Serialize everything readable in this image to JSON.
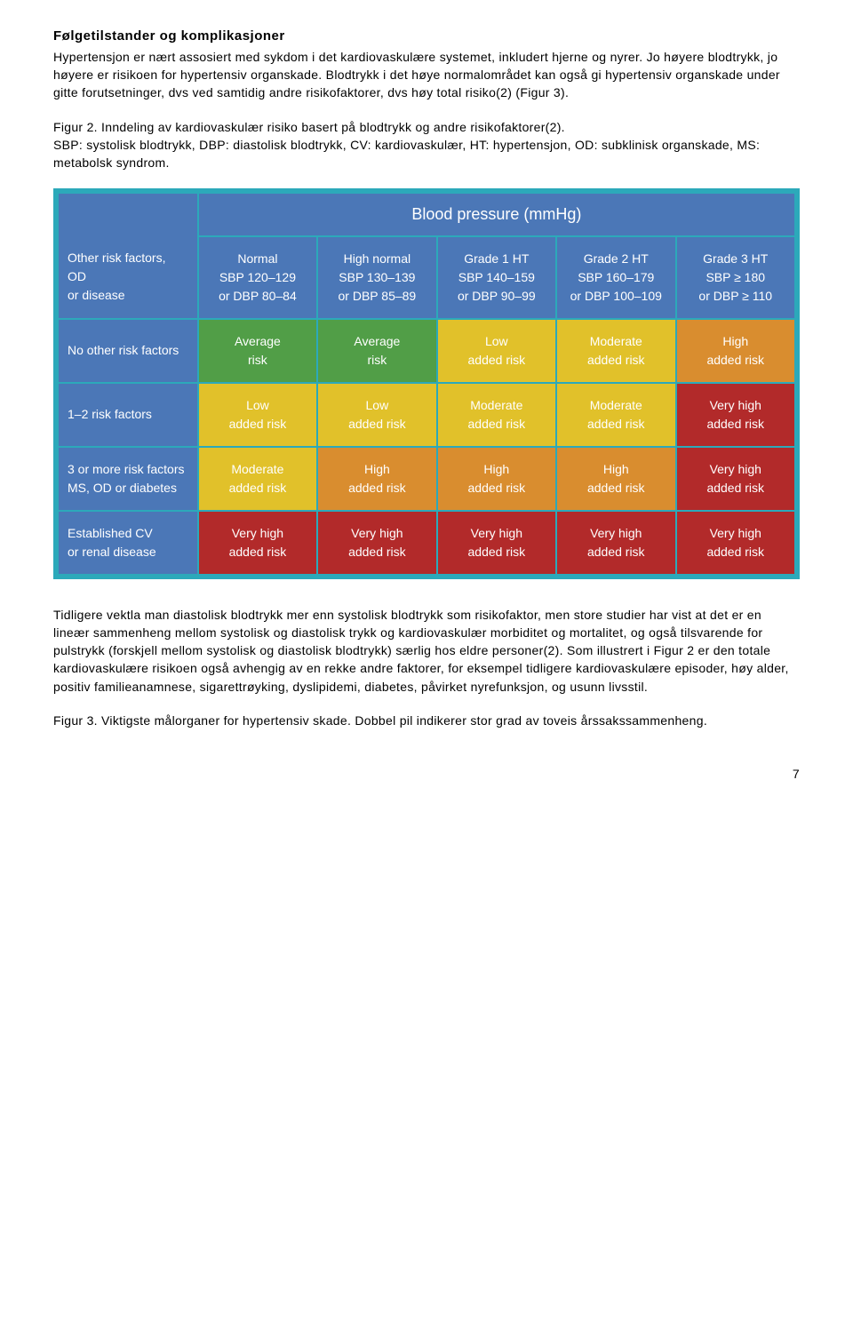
{
  "heading": "Følgetilstander og komplikasjoner",
  "intro": "Hypertensjon er nært assosiert med sykdom i det kardiovaskulære systemet, inkludert hjerne og nyrer. Jo høyere blodtrykk, jo høyere er risikoen for hypertensiv organskade. Blodtrykk i det høye normalområdet kan også gi hypertensiv organskade under gitte forutsetninger, dvs ved samtidig andre risikofaktorer, dvs høy total risiko(2) (Figur 3).",
  "fig2_title": "Figur 2. Inndeling av kardiovaskulær risiko basert på blodtrykk og andre risikofaktorer(2).",
  "fig2_sub": "SBP: systolisk blodtrykk, DBP: diastolisk blodtrykk, CV: kardiovaskulær, HT: hypertensjon, OD: subklinisk organskade, MS: metabolsk syndrom.",
  "table": {
    "colors": {
      "border": "#2ca9ba",
      "bp_header_bg": "#4b77b7",
      "header_bg": "#4b77b7",
      "green": "#519e47",
      "yellow": "#e1c12a",
      "orange": "#d98d2f",
      "red": "#b22a2a"
    },
    "bp_header": "Blood pressure (mmHg)",
    "col_headers": [
      {
        "l1": "Other risk factors,",
        "l2": "OD",
        "l3": "or disease"
      },
      {
        "l1": "Normal",
        "l2": "SBP 120–129",
        "l3": "or DBP 80–84"
      },
      {
        "l1": "High normal",
        "l2": "SBP 130–139",
        "l3": "or DBP 85–89"
      },
      {
        "l1": "Grade 1 HT",
        "l2": "SBP 140–159",
        "l3": "or DBP 90–99"
      },
      {
        "l1": "Grade 2 HT",
        "l2": "SBP 160–179",
        "l3": "or DBP 100–109"
      },
      {
        "l1": "Grade 3 HT",
        "l2": "SBP ≥ 180",
        "l3": "or DBP ≥ 110"
      }
    ],
    "rows": [
      {
        "label": "No other risk factors",
        "cells": [
          {
            "t1": "Average",
            "t2": "risk",
            "c": "green"
          },
          {
            "t1": "Average",
            "t2": "risk",
            "c": "green"
          },
          {
            "t1": "Low",
            "t2": "added risk",
            "c": "yellow"
          },
          {
            "t1": "Moderate",
            "t2": "added risk",
            "c": "yellow"
          },
          {
            "t1": "High",
            "t2": "added risk",
            "c": "orange"
          }
        ]
      },
      {
        "label": "1–2 risk factors",
        "cells": [
          {
            "t1": "Low",
            "t2": "added risk",
            "c": "yellow"
          },
          {
            "t1": "Low",
            "t2": "added risk",
            "c": "yellow"
          },
          {
            "t1": "Moderate",
            "t2": "added risk",
            "c": "yellow"
          },
          {
            "t1": "Moderate",
            "t2": "added risk",
            "c": "yellow"
          },
          {
            "t1": "Very high",
            "t2": "added risk",
            "c": "red"
          }
        ]
      },
      {
        "label_l1": "3 or more risk factors",
        "label_l2": "MS, OD or diabetes",
        "cells": [
          {
            "t1": "Moderate",
            "t2": "added risk",
            "c": "yellow"
          },
          {
            "t1": "High",
            "t2": "added risk",
            "c": "orange"
          },
          {
            "t1": "High",
            "t2": "added risk",
            "c": "orange"
          },
          {
            "t1": "High",
            "t2": "added risk",
            "c": "orange"
          },
          {
            "t1": "Very high",
            "t2": "added risk",
            "c": "red"
          }
        ]
      },
      {
        "label_l1": "Established CV",
        "label_l2": "or renal disease",
        "cells": [
          {
            "t1": "Very high",
            "t2": "added risk",
            "c": "red"
          },
          {
            "t1": "Very high",
            "t2": "added risk",
            "c": "red"
          },
          {
            "t1": "Very high",
            "t2": "added risk",
            "c": "red"
          },
          {
            "t1": "Very high",
            "t2": "added risk",
            "c": "red"
          },
          {
            "t1": "Very high",
            "t2": "added risk",
            "c": "red"
          }
        ]
      }
    ]
  },
  "para2": "Tidligere vektla man diastolisk blodtrykk mer enn systolisk blodtrykk som risikofaktor, men store studier har vist at det er en lineær sammenheng mellom  systolisk og diastolisk trykk og kardiovaskulær morbiditet og mortalitet, og også tilsvarende for pulstrykk (forskjell mellom systolisk og diastolisk blodtrykk) særlig hos eldre personer(2). Som illustrert i Figur 2 er den totale kardiovaskulære risikoen også avhengig av en rekke andre faktorer, for eksempel tidligere kardiovaskulære episoder, høy alder, positiv familieanamnese, sigarettrøyking, dyslipidemi, diabetes, påvirket nyrefunksjon, og usunn livsstil.",
  "fig3": "Figur 3. Viktigste målorganer for hypertensiv skade. Dobbel pil indikerer stor grad av toveis årssakssammenheng.",
  "page_num": "7"
}
